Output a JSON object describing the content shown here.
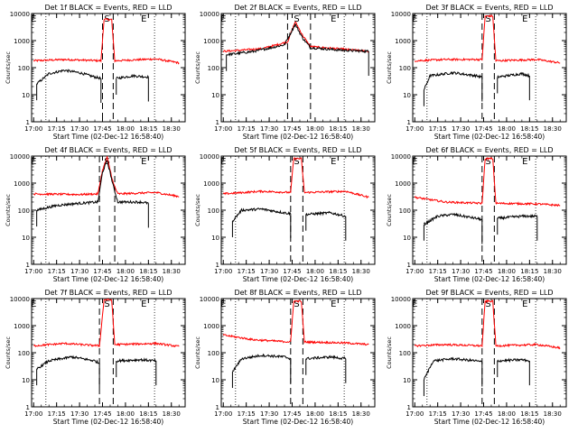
{
  "figure": {
    "xlabel": "Start Time (02-Dec-12 16:58:40)",
    "ylabel": "Counts/sec",
    "x_tick_labels": [
      "17:00",
      "17:15",
      "17:30",
      "17:45",
      "18:00",
      "18:15",
      "18:30"
    ],
    "y_tick_labels": [
      "1",
      "10",
      "100",
      "1000",
      "10000"
    ]
  },
  "colors": {
    "events": "#000000",
    "lld": "#ff0000",
    "axes": "#000000"
  },
  "chart_data": [
    {
      "type": "line",
      "title": "Det 1f BLACK = Events, RED = LLD",
      "xlabel": "Start Time (02-Dec-12 16:58:40)",
      "ylabel": "Counts/sec",
      "xlim": [
        "16:58:40",
        "18:39:00"
      ],
      "ylim": [
        1,
        10000
      ],
      "yscale": "log",
      "vertical_dashed_lines": [
        "17:45",
        "17:52"
      ],
      "vertical_dotted_lines": [
        "17:08",
        "18:19"
      ],
      "markers": {
        "S": "17:48",
        "E": "18:12",
        "E_start": "17:00"
      },
      "series": [
        {
          "name": "LLD",
          "color": "#ff0000",
          "keypoints": [
            [
              "17:00",
              180
            ],
            [
              "17:20",
              200
            ],
            [
              "17:44",
              180
            ],
            [
              "17:46",
              6000
            ],
            [
              "17:51",
              6000
            ],
            [
              "17:53",
              180
            ],
            [
              "18:20",
              210
            ],
            [
              "18:35",
              150
            ]
          ]
        },
        {
          "name": "Events",
          "color": "#000000",
          "segments": [
            [
              [
                "17:02",
                25
              ],
              [
                "17:10",
                60
              ],
              [
                "17:20",
                80
              ],
              [
                "17:30",
                65
              ],
              [
                "17:40",
                45
              ],
              [
                "17:44",
                40
              ]
            ],
            [
              [
                "17:54",
                40
              ],
              [
                "18:05",
                50
              ],
              [
                "18:15",
                45
              ]
            ]
          ]
        }
      ]
    },
    {
      "type": "line",
      "title": "Det 2f BLACK = Events, RED = LLD",
      "xlabel": "Start Time (02-Dec-12 16:58:40)",
      "ylabel": "Counts/sec",
      "xlim": [
        "16:58:40",
        "18:39:00"
      ],
      "ylim": [
        1,
        10000
      ],
      "yscale": "log",
      "vertical_dashed_lines": [
        "17:42",
        "17:57"
      ],
      "vertical_dotted_lines": [
        "17:08",
        "18:19"
      ],
      "markers": {
        "S": "17:48",
        "E": "18:12",
        "E_start": "17:00"
      },
      "series": [
        {
          "name": "LLD",
          "color": "#ff0000",
          "keypoints": [
            [
              "17:00",
              400
            ],
            [
              "17:25",
              500
            ],
            [
              "17:35",
              700
            ],
            [
              "17:42",
              900
            ],
            [
              "17:47",
              5000
            ],
            [
              "17:52",
              1500
            ],
            [
              "17:57",
              600
            ],
            [
              "18:15",
              500
            ],
            [
              "18:35",
              400
            ]
          ]
        },
        {
          "name": "Events",
          "color": "#000000",
          "segments": [
            [
              [
                "17:02",
                300
              ],
              [
                "17:20",
                400
              ],
              [
                "17:40",
                700
              ],
              [
                "17:47",
                4000
              ],
              [
                "17:52",
                1200
              ],
              [
                "17:57",
                550
              ],
              [
                "18:15",
                450
              ],
              [
                "18:35",
                400
              ]
            ]
          ]
        }
      ]
    },
    {
      "type": "line",
      "title": "Det 3f BLACK = Events, RED = LLD",
      "xlabel": "Start Time (02-Dec-12 16:58:40)",
      "ylabel": "Counts/sec",
      "xlim": [
        "16:58:40",
        "18:39:00"
      ],
      "ylim": [
        1,
        10000
      ],
      "yscale": "log",
      "vertical_dashed_lines": [
        "17:44",
        "17:52"
      ],
      "vertical_dotted_lines": [
        "17:08",
        "18:19"
      ],
      "markers": {
        "S": "17:48",
        "E": "18:12",
        "E_start": "17:00"
      },
      "series": [
        {
          "name": "LLD",
          "color": "#ff0000",
          "keypoints": [
            [
              "17:00",
              180
            ],
            [
              "17:20",
              200
            ],
            [
              "17:44",
              200
            ],
            [
              "17:46",
              8000
            ],
            [
              "17:51",
              8000
            ],
            [
              "17:53",
              180
            ],
            [
              "18:20",
              200
            ],
            [
              "18:35",
              150
            ]
          ]
        },
        {
          "name": "Events",
          "color": "#000000",
          "segments": [
            [
              [
                "17:06",
                15
              ],
              [
                "17:10",
                50
              ],
              [
                "17:25",
                65
              ],
              [
                "17:40",
                50
              ],
              [
                "17:44",
                45
              ]
            ],
            [
              [
                "17:54",
                45
              ],
              [
                "18:10",
                60
              ],
              [
                "18:15",
                50
              ]
            ]
          ]
        }
      ]
    },
    {
      "type": "line",
      "title": "Det 4f BLACK = Events, RED = LLD",
      "xlabel": "Start Time (02-Dec-12 16:58:40)",
      "ylabel": "Counts/sec",
      "xlim": [
        "16:58:40",
        "18:39:00"
      ],
      "ylim": [
        1,
        10000
      ],
      "yscale": "log",
      "vertical_dashed_lines": [
        "17:43",
        "17:53"
      ],
      "vertical_dotted_lines": [
        "17:08",
        "18:19"
      ],
      "markers": {
        "S": "17:48",
        "E": "18:12",
        "E_start": "17:00"
      },
      "series": [
        {
          "name": "LLD",
          "color": "#ff0000",
          "keypoints": [
            [
              "17:00",
              400
            ],
            [
              "17:30",
              380
            ],
            [
              "17:42",
              400
            ],
            [
              "17:45",
              3000
            ],
            [
              "17:48",
              9000
            ],
            [
              "17:52",
              1000
            ],
            [
              "17:55",
              400
            ],
            [
              "18:20",
              450
            ],
            [
              "18:35",
              320
            ]
          ]
        },
        {
          "name": "Events",
          "color": "#000000",
          "segments": [
            [
              [
                "17:02",
                100
              ],
              [
                "17:15",
                150
              ],
              [
                "17:30",
                180
              ],
              [
                "17:42",
                200
              ],
              [
                "17:45",
                2500
              ],
              [
                "17:48",
                7000
              ],
              [
                "17:52",
                800
              ],
              [
                "17:55",
                200
              ],
              [
                "18:10",
                200
              ],
              [
                "18:15",
                180
              ]
            ]
          ]
        }
      ]
    },
    {
      "type": "line",
      "title": "Det 5f BLACK = Events, RED = LLD",
      "xlabel": "Start Time (02-Dec-12 16:58:40)",
      "ylabel": "Counts/sec",
      "xlim": [
        "16:58:40",
        "18:39:00"
      ],
      "ylim": [
        1,
        10000
      ],
      "yscale": "log",
      "vertical_dashed_lines": [
        "17:44",
        "17:52"
      ],
      "vertical_dotted_lines": [
        "17:08",
        "18:19"
      ],
      "markers": {
        "S": "17:48",
        "E": "18:12",
        "E_start": "17:00"
      },
      "series": [
        {
          "name": "LLD",
          "color": "#ff0000",
          "keypoints": [
            [
              "17:00",
              400
            ],
            [
              "17:25",
              500
            ],
            [
              "17:44",
              450
            ],
            [
              "17:46",
              8000
            ],
            [
              "17:51",
              8000
            ],
            [
              "17:53",
              450
            ],
            [
              "18:20",
              500
            ],
            [
              "18:35",
              300
            ]
          ]
        },
        {
          "name": "Events",
          "color": "#000000",
          "segments": [
            [
              [
                "17:06",
                40
              ],
              [
                "17:12",
                100
              ],
              [
                "17:25",
                110
              ],
              [
                "17:40",
                80
              ],
              [
                "17:44",
                75
              ]
            ],
            [
              [
                "17:54",
                70
              ],
              [
                "18:10",
                80
              ],
              [
                "18:20",
                60
              ]
            ]
          ]
        }
      ]
    },
    {
      "type": "line",
      "title": "Det 6f BLACK = Events, RED = LLD",
      "xlabel": "Start Time (02-Dec-12 16:58:40)",
      "ylabel": "Counts/sec",
      "xlim": [
        "16:58:40",
        "18:39:00"
      ],
      "ylim": [
        1,
        10000
      ],
      "yscale": "log",
      "vertical_dashed_lines": [
        "17:44",
        "17:52"
      ],
      "vertical_dotted_lines": [
        "17:08",
        "18:19"
      ],
      "markers": {
        "S": "17:48",
        "E": "18:12",
        "E_start": "17:00"
      },
      "series": [
        {
          "name": "LLD",
          "color": "#ff0000",
          "keypoints": [
            [
              "17:00",
              300
            ],
            [
              "17:20",
              200
            ],
            [
              "17:44",
              180
            ],
            [
              "17:46",
              8000
            ],
            [
              "17:51",
              8000
            ],
            [
              "17:53",
              180
            ],
            [
              "18:20",
              170
            ],
            [
              "18:35",
              150
            ]
          ]
        },
        {
          "name": "Events",
          "color": "#000000",
          "segments": [
            [
              [
                "17:06",
                30
              ],
              [
                "17:15",
                60
              ],
              [
                "17:25",
                70
              ],
              [
                "17:40",
                50
              ],
              [
                "17:44",
                45
              ]
            ],
            [
              [
                "17:54",
                50
              ],
              [
                "18:10",
                60
              ],
              [
                "18:20",
                60
              ]
            ]
          ]
        }
      ]
    },
    {
      "type": "line",
      "title": "Det 7f BLACK = Events, RED = LLD",
      "xlabel": "Start Time (02-Dec-12 16:58:40)",
      "ylabel": "Counts/sec",
      "xlim": [
        "16:58:40",
        "18:39:00"
      ],
      "ylim": [
        1,
        10000
      ],
      "yscale": "log",
      "vertical_dashed_lines": [
        "17:43",
        "17:52"
      ],
      "vertical_dotted_lines": [
        "17:08",
        "18:19"
      ],
      "markers": {
        "S": "17:48",
        "E": "18:12",
        "E_start": "17:00"
      },
      "series": [
        {
          "name": "LLD",
          "color": "#ff0000",
          "keypoints": [
            [
              "17:00",
              180
            ],
            [
              "17:20",
              220
            ],
            [
              "17:43",
              180
            ],
            [
              "17:46",
              9000
            ],
            [
              "17:51",
              9000
            ],
            [
              "17:53",
              200
            ],
            [
              "18:20",
              220
            ],
            [
              "18:35",
              170
            ]
          ]
        },
        {
          "name": "Events",
          "color": "#000000",
          "segments": [
            [
              [
                "17:02",
                25
              ],
              [
                "17:10",
                50
              ],
              [
                "17:25",
                70
              ],
              [
                "17:40",
                50
              ],
              [
                "17:43",
                40
              ]
            ],
            [
              [
                "17:54",
                50
              ],
              [
                "18:10",
                55
              ],
              [
                "18:20",
                50
              ]
            ]
          ]
        }
      ]
    },
    {
      "type": "line",
      "title": "Det 8f BLACK = Events, RED = LLD",
      "xlabel": "Start Time (02-Dec-12 16:58:40)",
      "ylabel": "Counts/sec",
      "xlim": [
        "16:58:40",
        "18:39:00"
      ],
      "ylim": [
        1,
        10000
      ],
      "yscale": "log",
      "vertical_dashed_lines": [
        "17:44",
        "17:52"
      ],
      "vertical_dotted_lines": [
        "17:08",
        "18:19"
      ],
      "markers": {
        "S": "17:48",
        "E": "18:12",
        "E_start": "17:00"
      },
      "series": [
        {
          "name": "LLD",
          "color": "#ff0000",
          "keypoints": [
            [
              "17:00",
              450
            ],
            [
              "17:20",
              300
            ],
            [
              "17:44",
              250
            ],
            [
              "17:46",
              8000
            ],
            [
              "17:51",
              8000
            ],
            [
              "17:53",
              250
            ],
            [
              "18:20",
              230
            ],
            [
              "18:35",
              200
            ]
          ]
        },
        {
          "name": "Events",
          "color": "#000000",
          "segments": [
            [
              [
                "17:06",
                20
              ],
              [
                "17:12",
                60
              ],
              [
                "17:25",
                80
              ],
              [
                "17:40",
                70
              ],
              [
                "17:44",
                60
              ]
            ],
            [
              [
                "17:54",
                60
              ],
              [
                "18:10",
                70
              ],
              [
                "18:20",
                60
              ]
            ]
          ]
        }
      ]
    },
    {
      "type": "line",
      "title": "Det 9f BLACK = Events, RED = LLD",
      "xlabel": "Start Time (02-Dec-12 16:58:40)",
      "ylabel": "Counts/sec",
      "xlim": [
        "16:58:40",
        "18:39:00"
      ],
      "ylim": [
        1,
        10000
      ],
      "yscale": "log",
      "vertical_dashed_lines": [
        "17:44",
        "17:52"
      ],
      "vertical_dotted_lines": [
        "17:08",
        "18:19"
      ],
      "markers": {
        "S": "17:48",
        "E": "18:12",
        "E_start": "17:00"
      },
      "series": [
        {
          "name": "LLD",
          "color": "#ff0000",
          "keypoints": [
            [
              "17:00",
              180
            ],
            [
              "17:20",
              200
            ],
            [
              "17:44",
              180
            ],
            [
              "17:46",
              8000
            ],
            [
              "17:51",
              8000
            ],
            [
              "17:53",
              180
            ],
            [
              "18:20",
              200
            ],
            [
              "18:35",
              150
            ]
          ]
        },
        {
          "name": "Events",
          "color": "#000000",
          "segments": [
            [
              [
                "17:06",
                10
              ],
              [
                "17:12",
                50
              ],
              [
                "17:25",
                60
              ],
              [
                "17:40",
                50
              ],
              [
                "17:44",
                45
              ]
            ],
            [
              [
                "17:54",
                50
              ],
              [
                "18:10",
                55
              ],
              [
                "18:15",
                50
              ]
            ]
          ]
        }
      ]
    }
  ]
}
